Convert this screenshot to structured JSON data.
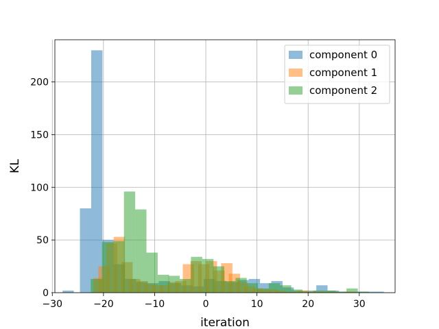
{
  "chart_data": {
    "type": "bar",
    "xlabel": "iteration",
    "ylabel": "KL",
    "xlim": [
      -29.5,
      37.0
    ],
    "ylim": [
      0,
      240
    ],
    "xticks": [
      -30,
      -20,
      -10,
      0,
      10,
      20,
      30
    ],
    "yticks": [
      0,
      50,
      100,
      150,
      200
    ],
    "grid": true,
    "legend_position": "top-right",
    "bin_width": 2.2,
    "series": [
      {
        "name": "component 0",
        "color": "#1f77b4",
        "bins": [
          {
            "x0": -28.0,
            "value": 2
          },
          {
            "x0": -24.6,
            "value": 80
          },
          {
            "x0": -22.4,
            "value": 230
          },
          {
            "x0": -20.2,
            "value": 50
          },
          {
            "x0": -18.0,
            "value": 27
          },
          {
            "x0": -15.8,
            "value": 13
          },
          {
            "x0": -13.6,
            "value": 10
          },
          {
            "x0": -11.4,
            "value": 9
          },
          {
            "x0": -9.2,
            "value": 11
          },
          {
            "x0": -7.0,
            "value": 9
          },
          {
            "x0": -4.8,
            "value": 7
          },
          {
            "x0": -2.6,
            "value": 6
          },
          {
            "x0": -0.4,
            "value": 13
          },
          {
            "x0": 1.8,
            "value": 11
          },
          {
            "x0": 4.0,
            "value": 10
          },
          {
            "x0": 6.2,
            "value": 12
          },
          {
            "x0": 8.4,
            "value": 13
          },
          {
            "x0": 10.6,
            "value": 9
          },
          {
            "x0": 12.8,
            "value": 11
          },
          {
            "x0": 15.0,
            "value": 5
          },
          {
            "x0": 17.2,
            "value": 2
          },
          {
            "x0": 19.4,
            "value": 2
          },
          {
            "x0": 21.6,
            "value": 7
          },
          {
            "x0": 23.8,
            "value": 2
          },
          {
            "x0": 26.0,
            "value": 1
          },
          {
            "x0": 28.2,
            "value": 1
          },
          {
            "x0": 30.4,
            "value": 1
          },
          {
            "x0": 32.6,
            "value": 1
          }
        ]
      },
      {
        "name": "component 1",
        "color": "#ff7f0e",
        "bins": [
          {
            "x0": -22.0,
            "value": 14
          },
          {
            "x0": -21.0,
            "value": 25
          },
          {
            "x0": -19.5,
            "value": 47
          },
          {
            "x0": -18.0,
            "value": 53
          },
          {
            "x0": -16.5,
            "value": 29
          },
          {
            "x0": -15.0,
            "value": 13
          },
          {
            "x0": -13.5,
            "value": 11
          },
          {
            "x0": -12.0,
            "value": 8
          },
          {
            "x0": -10.5,
            "value": 7
          },
          {
            "x0": -9.0,
            "value": 7
          },
          {
            "x0": -7.5,
            "value": 10
          },
          {
            "x0": -6.0,
            "value": 11
          },
          {
            "x0": -4.5,
            "value": 27
          },
          {
            "x0": -3.0,
            "value": 30
          },
          {
            "x0": -1.5,
            "value": 27
          },
          {
            "x0": 0.0,
            "value": 30
          },
          {
            "x0": 1.5,
            "value": 21
          },
          {
            "x0": 3.0,
            "value": 28
          },
          {
            "x0": 4.5,
            "value": 18
          },
          {
            "x0": 6.0,
            "value": 10
          },
          {
            "x0": 7.5,
            "value": 6
          },
          {
            "x0": 9.0,
            "value": 4
          },
          {
            "x0": 10.5,
            "value": 3
          },
          {
            "x0": 12.0,
            "value": 3
          },
          {
            "x0": 13.5,
            "value": 2
          },
          {
            "x0": 15.0,
            "value": 1
          },
          {
            "x0": 16.5,
            "value": 1
          },
          {
            "x0": 18.0,
            "value": 2
          },
          {
            "x0": 19.5,
            "value": 1
          },
          {
            "x0": 21.0,
            "value": 1
          },
          {
            "x0": 22.5,
            "value": 1
          },
          {
            "x0": 24.0,
            "value": 1
          },
          {
            "x0": 27.0,
            "value": 1
          }
        ]
      },
      {
        "name": "component 2",
        "color": "#2ca02c",
        "bins": [
          {
            "x0": -22.5,
            "value": 13
          },
          {
            "x0": -20.3,
            "value": 48
          },
          {
            "x0": -18.1,
            "value": 49
          },
          {
            "x0": -16.0,
            "value": 96
          },
          {
            "x0": -13.8,
            "value": 79
          },
          {
            "x0": -11.6,
            "value": 38
          },
          {
            "x0": -9.4,
            "value": 17
          },
          {
            "x0": -7.3,
            "value": 16
          },
          {
            "x0": -5.1,
            "value": 13
          },
          {
            "x0": -2.9,
            "value": 34
          },
          {
            "x0": -0.7,
            "value": 32
          },
          {
            "x0": 1.4,
            "value": 25
          },
          {
            "x0": 3.6,
            "value": 11
          },
          {
            "x0": 5.8,
            "value": 14
          },
          {
            "x0": 8.0,
            "value": 9
          },
          {
            "x0": 10.1,
            "value": 4
          },
          {
            "x0": 12.3,
            "value": 9
          },
          {
            "x0": 14.5,
            "value": 7
          },
          {
            "x0": 16.7,
            "value": 3
          },
          {
            "x0": 18.8,
            "value": 1
          },
          {
            "x0": 21.0,
            "value": 2
          },
          {
            "x0": 23.2,
            "value": 2
          },
          {
            "x0": 25.4,
            "value": 1
          },
          {
            "x0": 27.5,
            "value": 4
          },
          {
            "x0": 29.7,
            "value": 1
          }
        ]
      }
    ]
  }
}
